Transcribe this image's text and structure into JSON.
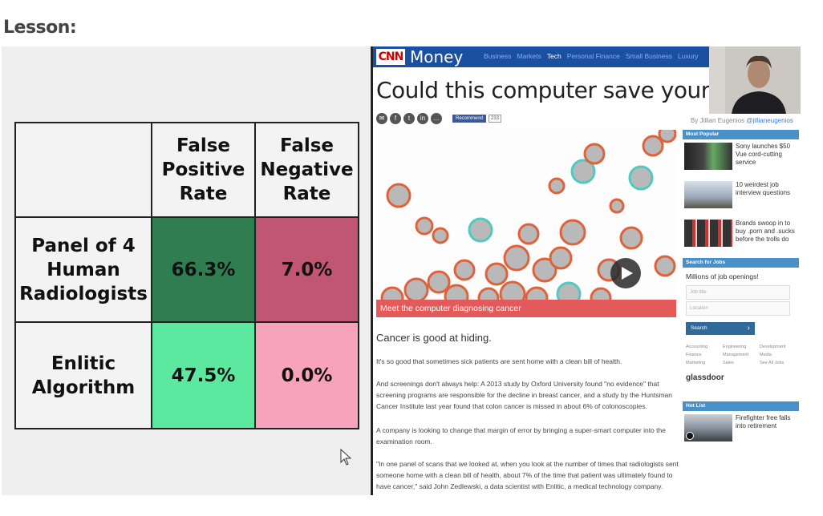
{
  "lesson": {
    "heading": "Lesson:"
  },
  "slide": {
    "columns": [
      "False Positive Rate",
      "False Negative Rate"
    ],
    "column_lines": [
      [
        "False",
        "Positive",
        "Rate"
      ],
      [
        "False",
        "Negative",
        "Rate"
      ]
    ],
    "rows": [
      {
        "label_lines": [
          "Panel of 4",
          "Human",
          "Radiologists"
        ],
        "values": [
          "66.3%",
          "7.0%"
        ]
      },
      {
        "label_lines": [
          "Enlitic",
          "Algorithm"
        ],
        "values": [
          "47.5%",
          "0.0%"
        ]
      }
    ],
    "colors": {
      "fpr_human": "#2f7d50",
      "fnr_human": "#c05671",
      "fpr_enlitic": "#5de8a0",
      "fnr_enlitic": "#f8a3bd"
    }
  },
  "article": {
    "logo_cnn": "CNN",
    "logo_money": "Money",
    "nav": [
      "Business",
      "Markets",
      "Tech",
      "Personal Finance",
      "Small Business",
      "Luxury"
    ],
    "nav_active": "Tech",
    "headline": "Could this computer save your lif",
    "recommend_label": "Recommend",
    "recommend_count": "233",
    "byline_prefix": "By Jillian Eugenios",
    "byline_twitter": "@jillianeugenios",
    "hero_caption": "Meet the computer diagnosing cancer",
    "lead": "Cancer is good at hiding.",
    "paragraphs": [
      "It's so good that sometimes sick patients are sent home with a clean bill of health.",
      "And screenings don't always help: A 2013 study by Oxford University found \"no evidence\" that screening programs are responsible for the decline in breast cancer, and a study by the Huntsman Cancer Institute last year found that colon cancer is missed in about 6% of colonoscopies.",
      "A company is looking to change that margin of error by bringing a super-smart computer into the examination room.",
      "\"In one panel of scans that we looked at, when you look at the number of times that radiologists sent someone home with a clean bill of health, about 7% of the time that patient was ultimately found to have cancer,\" said John Zedlewski, a data scientist with Enlitic, a medical technology company."
    ]
  },
  "sidebar": {
    "most_popular_title": "Most Popular",
    "most_popular": [
      "Sony launches $50 Vue cord-cutting service",
      "10 weirdest job interview questions",
      "Brands swoop in to buy .porn and .sucks before the trolls do"
    ],
    "jobs_title": "Search for Jobs",
    "jobs_subtitle": "Millions of job openings!",
    "job_title_placeholder": "Job title",
    "location_placeholder": "Location",
    "search_label": "Search",
    "categories": [
      "Accounting",
      "Engineering",
      "Development",
      "Finance",
      "Management",
      "Media",
      "Marketing",
      "Sales",
      "See All Jobs"
    ],
    "glassdoor": "glassdoor",
    "hot_list_title": "Hot List",
    "hot_list": [
      "Firefighter free falls into retirement"
    ]
  }
}
